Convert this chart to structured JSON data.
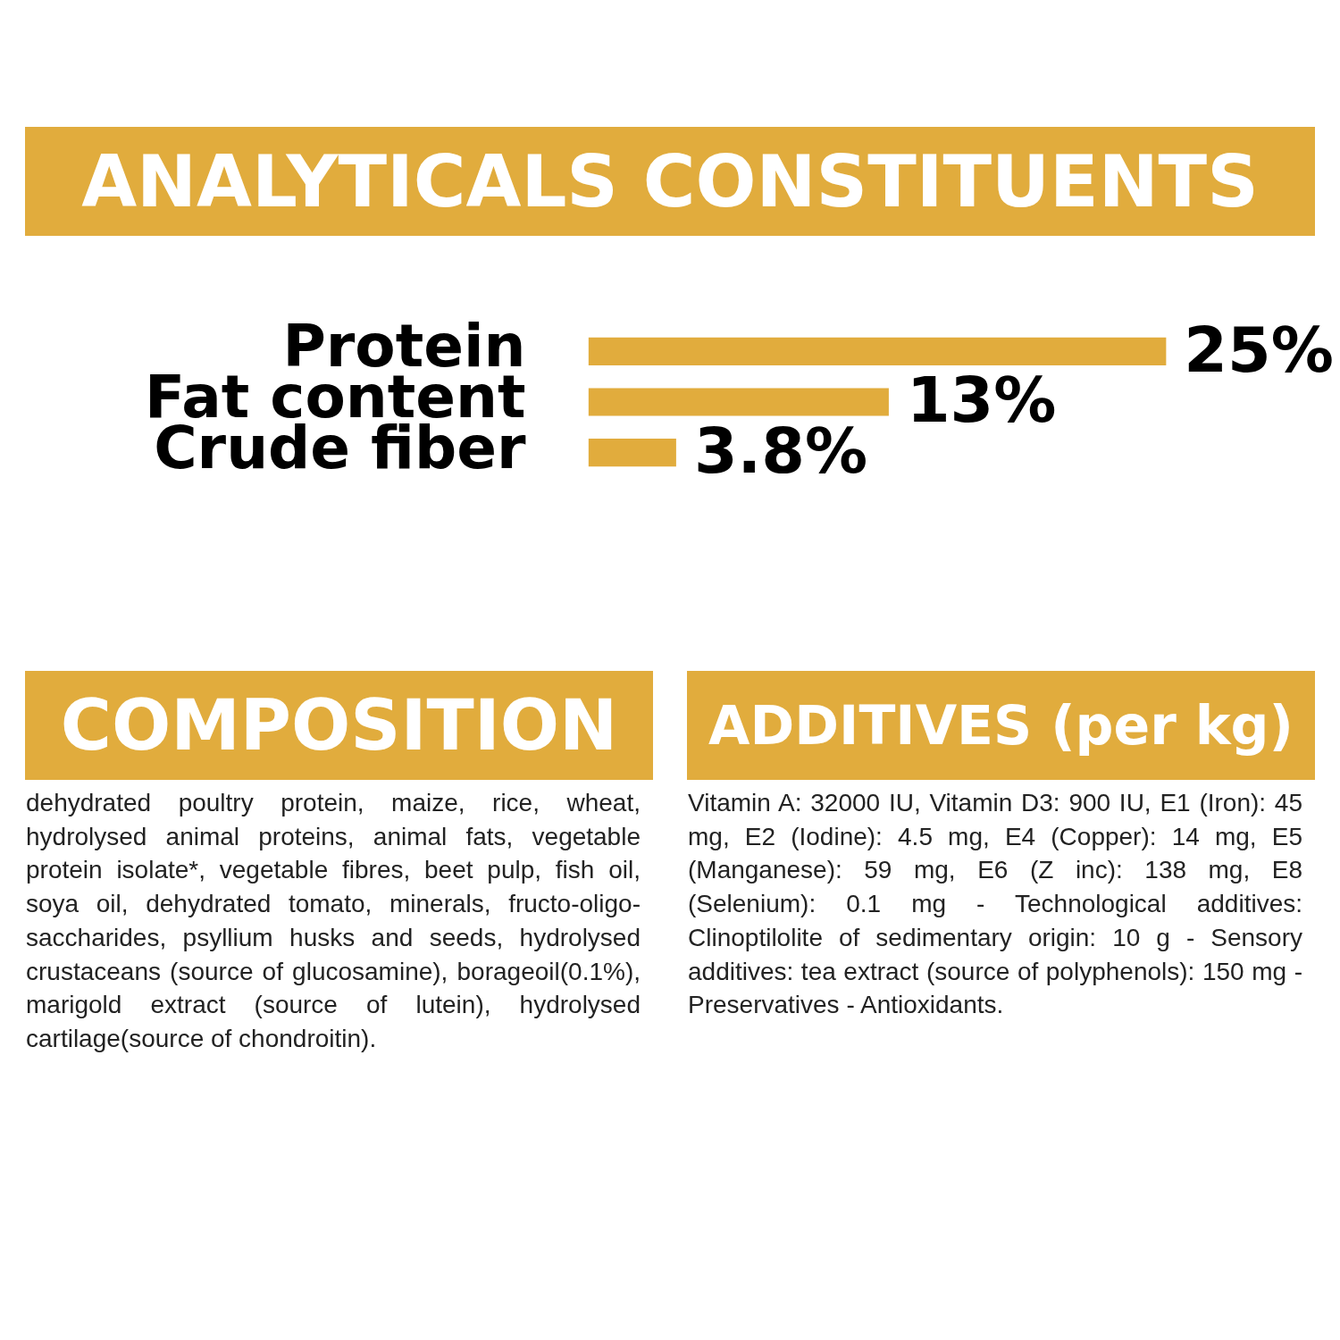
{
  "chart_data": {
    "type": "bar",
    "orientation": "horizontal",
    "title": "ANALYTICALS CONSTITUENTS",
    "categories": [
      "Protein",
      "Fat content",
      "Crude fiber"
    ],
    "values": [
      25,
      13,
      3.8
    ],
    "value_labels": [
      "25%",
      "13%",
      "3.8%"
    ],
    "color": "#e1ac3d",
    "tick_labels": "y",
    "annotations": [
      "COMPOSITION",
      "dehydrated poultry protein, maize, rice, wheat, hydrolysed animal proteins, animal fats, vegetable protein isolate*, vegetable fibres, beet pulp, fish oil, soya oil, dehydrated tomato, minerals, fructo-oligo-saccharides, psyllium husks and seeds, hydrolysed crustaceans (source of glucosamine), borageoil(0.1%), marigold extract (source of lutein), hydrolysed cartilage(source of chondroitin).",
      "ADDITIVES (per kg)",
      "Vitamin A: 32000 IU, Vitamin D3: 900 IU, E1 (Iron): 45 mg, E2 (Iodine): 4.5 mg, E4 (Copper): 14 mg, E5 (Manganese): 59 mg, E6 (Z inc): 138 mg, E8 (Selenium): 0.1 mg - Technological additives: Clinoptilolite of sedimentary origin: 10 g - Sensory additives: tea extract (source of polyphenols): 150 mg - Preservatives - Antioxidants."
    ]
  }
}
